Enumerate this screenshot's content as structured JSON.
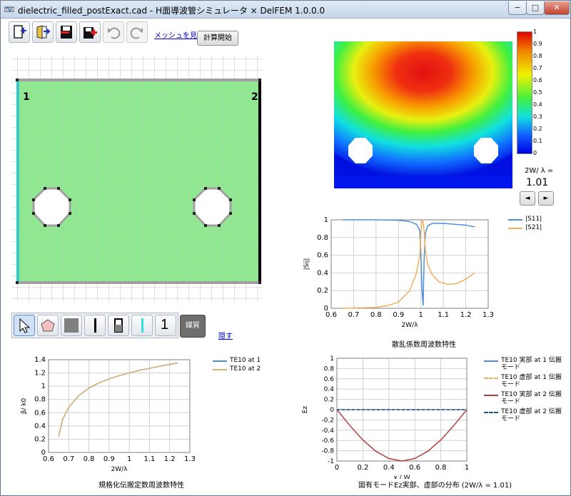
{
  "window": {
    "title": "dielectric_filled_postExact.cad - H面導波管シミュレータ  × DelFEM 1.0.0.0",
    "minimize": "−",
    "maximize": "□",
    "close": "✕"
  },
  "toolbar": {
    "icons": [
      "new-file-icon",
      "open-file-icon",
      "save-icon",
      "save-as-icon",
      "undo-icon",
      "redo-icon"
    ],
    "mesh_link": "メッシュを見る",
    "calc_button": "計算開始"
  },
  "cad": {
    "port1_label": "1",
    "port2_label": "2",
    "colors": {
      "dielectric": "#90e890",
      "port1": "#33cccc",
      "port2": "#000000",
      "wall": "#a0a0a0"
    }
  },
  "drawtools": {
    "icons": [
      "pointer-icon",
      "polygon-icon",
      "area-icon",
      "boundary-icon",
      "boundary-alt-icon",
      "port-icon",
      "number-icon"
    ],
    "number_label": "1",
    "media_button": "媒質",
    "hide_link": "隠す"
  },
  "field": {
    "colorbar_ticks": [
      "1",
      "0.9",
      "0.8",
      "0.7",
      "0.6",
      "0.5",
      "0.4",
      "0.3",
      "0.2",
      "0.1",
      "0"
    ],
    "freq_label": "2W/ λ  =",
    "freq_value": "1.01",
    "prev_button": "◄",
    "next_button": "►"
  },
  "chart_scatter": {
    "type": "line",
    "caption": "散乱係数周波数特性",
    "xlabel": "2W/λ",
    "ylabel": "|Sij|",
    "xlim": [
      0.6,
      1.3
    ],
    "ylim": [
      0,
      1
    ],
    "xticks": [
      "0.6",
      "0.7",
      "0.8",
      "0.9",
      "1",
      "1.1",
      "1.2",
      "1.3"
    ],
    "yticks": [
      "0",
      "0.2",
      "0.4",
      "0.6",
      "0.8",
      "1"
    ],
    "series": [
      {
        "name": "|S11|",
        "color": "#4f8fd8",
        "x": [
          0.65,
          0.8,
          0.9,
          0.95,
          0.98,
          0.995,
          1.0,
          1.005,
          1.01,
          1.012,
          1.015,
          1.02,
          1.03,
          1.05,
          1.1,
          1.15,
          1.2,
          1.24
        ],
        "y": [
          1,
          1,
          0.995,
          0.98,
          0.95,
          0.88,
          0.6,
          0.2,
          0.03,
          0.3,
          0.6,
          0.85,
          0.93,
          0.96,
          0.96,
          0.95,
          0.94,
          0.92
        ]
      },
      {
        "name": "|S21|",
        "color": "#f0b060",
        "x": [
          0.65,
          0.8,
          0.85,
          0.9,
          0.95,
          0.98,
          0.995,
          1.0,
          1.005,
          1.01,
          1.015,
          1.02,
          1.03,
          1.05,
          1.08,
          1.12,
          1.16,
          1.2,
          1.24
        ],
        "y": [
          0,
          0.01,
          0.03,
          0.07,
          0.2,
          0.4,
          0.6,
          0.85,
          0.99,
          0.98,
          0.85,
          0.65,
          0.5,
          0.38,
          0.3,
          0.27,
          0.28,
          0.33,
          0.4
        ]
      }
    ]
  },
  "chart_beta": {
    "type": "line",
    "caption": "規格化伝搬定数周波数特性",
    "xlabel": "2W/λ",
    "ylabel": "β/ k0",
    "xlim": [
      0.6,
      1.3
    ],
    "ylim": [
      0,
      1.4
    ],
    "xticks": [
      "0.6",
      "0.7",
      "0.8",
      "0.9",
      "1",
      "1.1",
      "1.2",
      "1.3"
    ],
    "yticks": [
      "0",
      "0.2",
      "0.4",
      "0.6",
      "0.8",
      "1",
      "1.2",
      "1.4"
    ],
    "series": [
      {
        "name": "TE10 at 1",
        "color": "#4f8fd8",
        "x": [
          0.65,
          0.67,
          0.7,
          0.75,
          0.8,
          0.85,
          0.9,
          0.95,
          1.0,
          1.05,
          1.1,
          1.15,
          1.2,
          1.24
        ],
        "y": [
          0.24,
          0.5,
          0.68,
          0.86,
          0.97,
          1.05,
          1.11,
          1.16,
          1.2,
          1.24,
          1.27,
          1.3,
          1.33,
          1.35
        ]
      },
      {
        "name": "TE10 at 2",
        "color": "#d9b070",
        "x": [
          0.65,
          0.67,
          0.7,
          0.75,
          0.8,
          0.85,
          0.9,
          0.95,
          1.0,
          1.05,
          1.1,
          1.15,
          1.2,
          1.24
        ],
        "y": [
          0.24,
          0.5,
          0.68,
          0.86,
          0.97,
          1.05,
          1.11,
          1.16,
          1.2,
          1.24,
          1.27,
          1.3,
          1.33,
          1.35
        ]
      }
    ]
  },
  "chart_mode": {
    "type": "line",
    "caption": "固有モードEz実部、虚部の分布 (2W/λ = 1.01)",
    "xlabel": "x / W",
    "ylabel": "Ez",
    "xlim": [
      0,
      1
    ],
    "ylim": [
      -1,
      1
    ],
    "xticks": [
      "0",
      "0.2",
      "0.4",
      "0.6",
      "0.8",
      "1"
    ],
    "yticks": [
      "1",
      "0.8",
      "0.6",
      "0.4",
      "0.2",
      "0",
      "-0.2",
      "-0.4",
      "-0.6",
      "-0.8",
      "-1"
    ],
    "series": [
      {
        "name": "TE10 実部 at 1 伝搬モード",
        "color": "#4f8fd8",
        "dash": "",
        "x": [
          0,
          1
        ],
        "y": [
          0,
          0
        ]
      },
      {
        "name": "TE10 虚部 at 1 伝搬モード",
        "color": "#f0b060",
        "dash": "4,3",
        "x": [
          0,
          1
        ],
        "y": [
          0,
          0
        ]
      },
      {
        "name": "TE10 実部 at 2 伝搬モード",
        "color": "#b04040",
        "dash": "",
        "x": [
          0,
          0.1,
          0.2,
          0.3,
          0.4,
          0.5,
          0.6,
          0.7,
          0.8,
          0.9,
          1.0
        ],
        "y": [
          0,
          -0.31,
          -0.59,
          -0.81,
          -0.95,
          -1,
          -0.95,
          -0.81,
          -0.59,
          -0.31,
          0
        ]
      },
      {
        "name": "TE10 虚部 at 2 伝搬モード",
        "color": "#1f4f8f",
        "dash": "4,3",
        "x": [
          0,
          1
        ],
        "y": [
          0,
          0
        ]
      }
    ]
  }
}
